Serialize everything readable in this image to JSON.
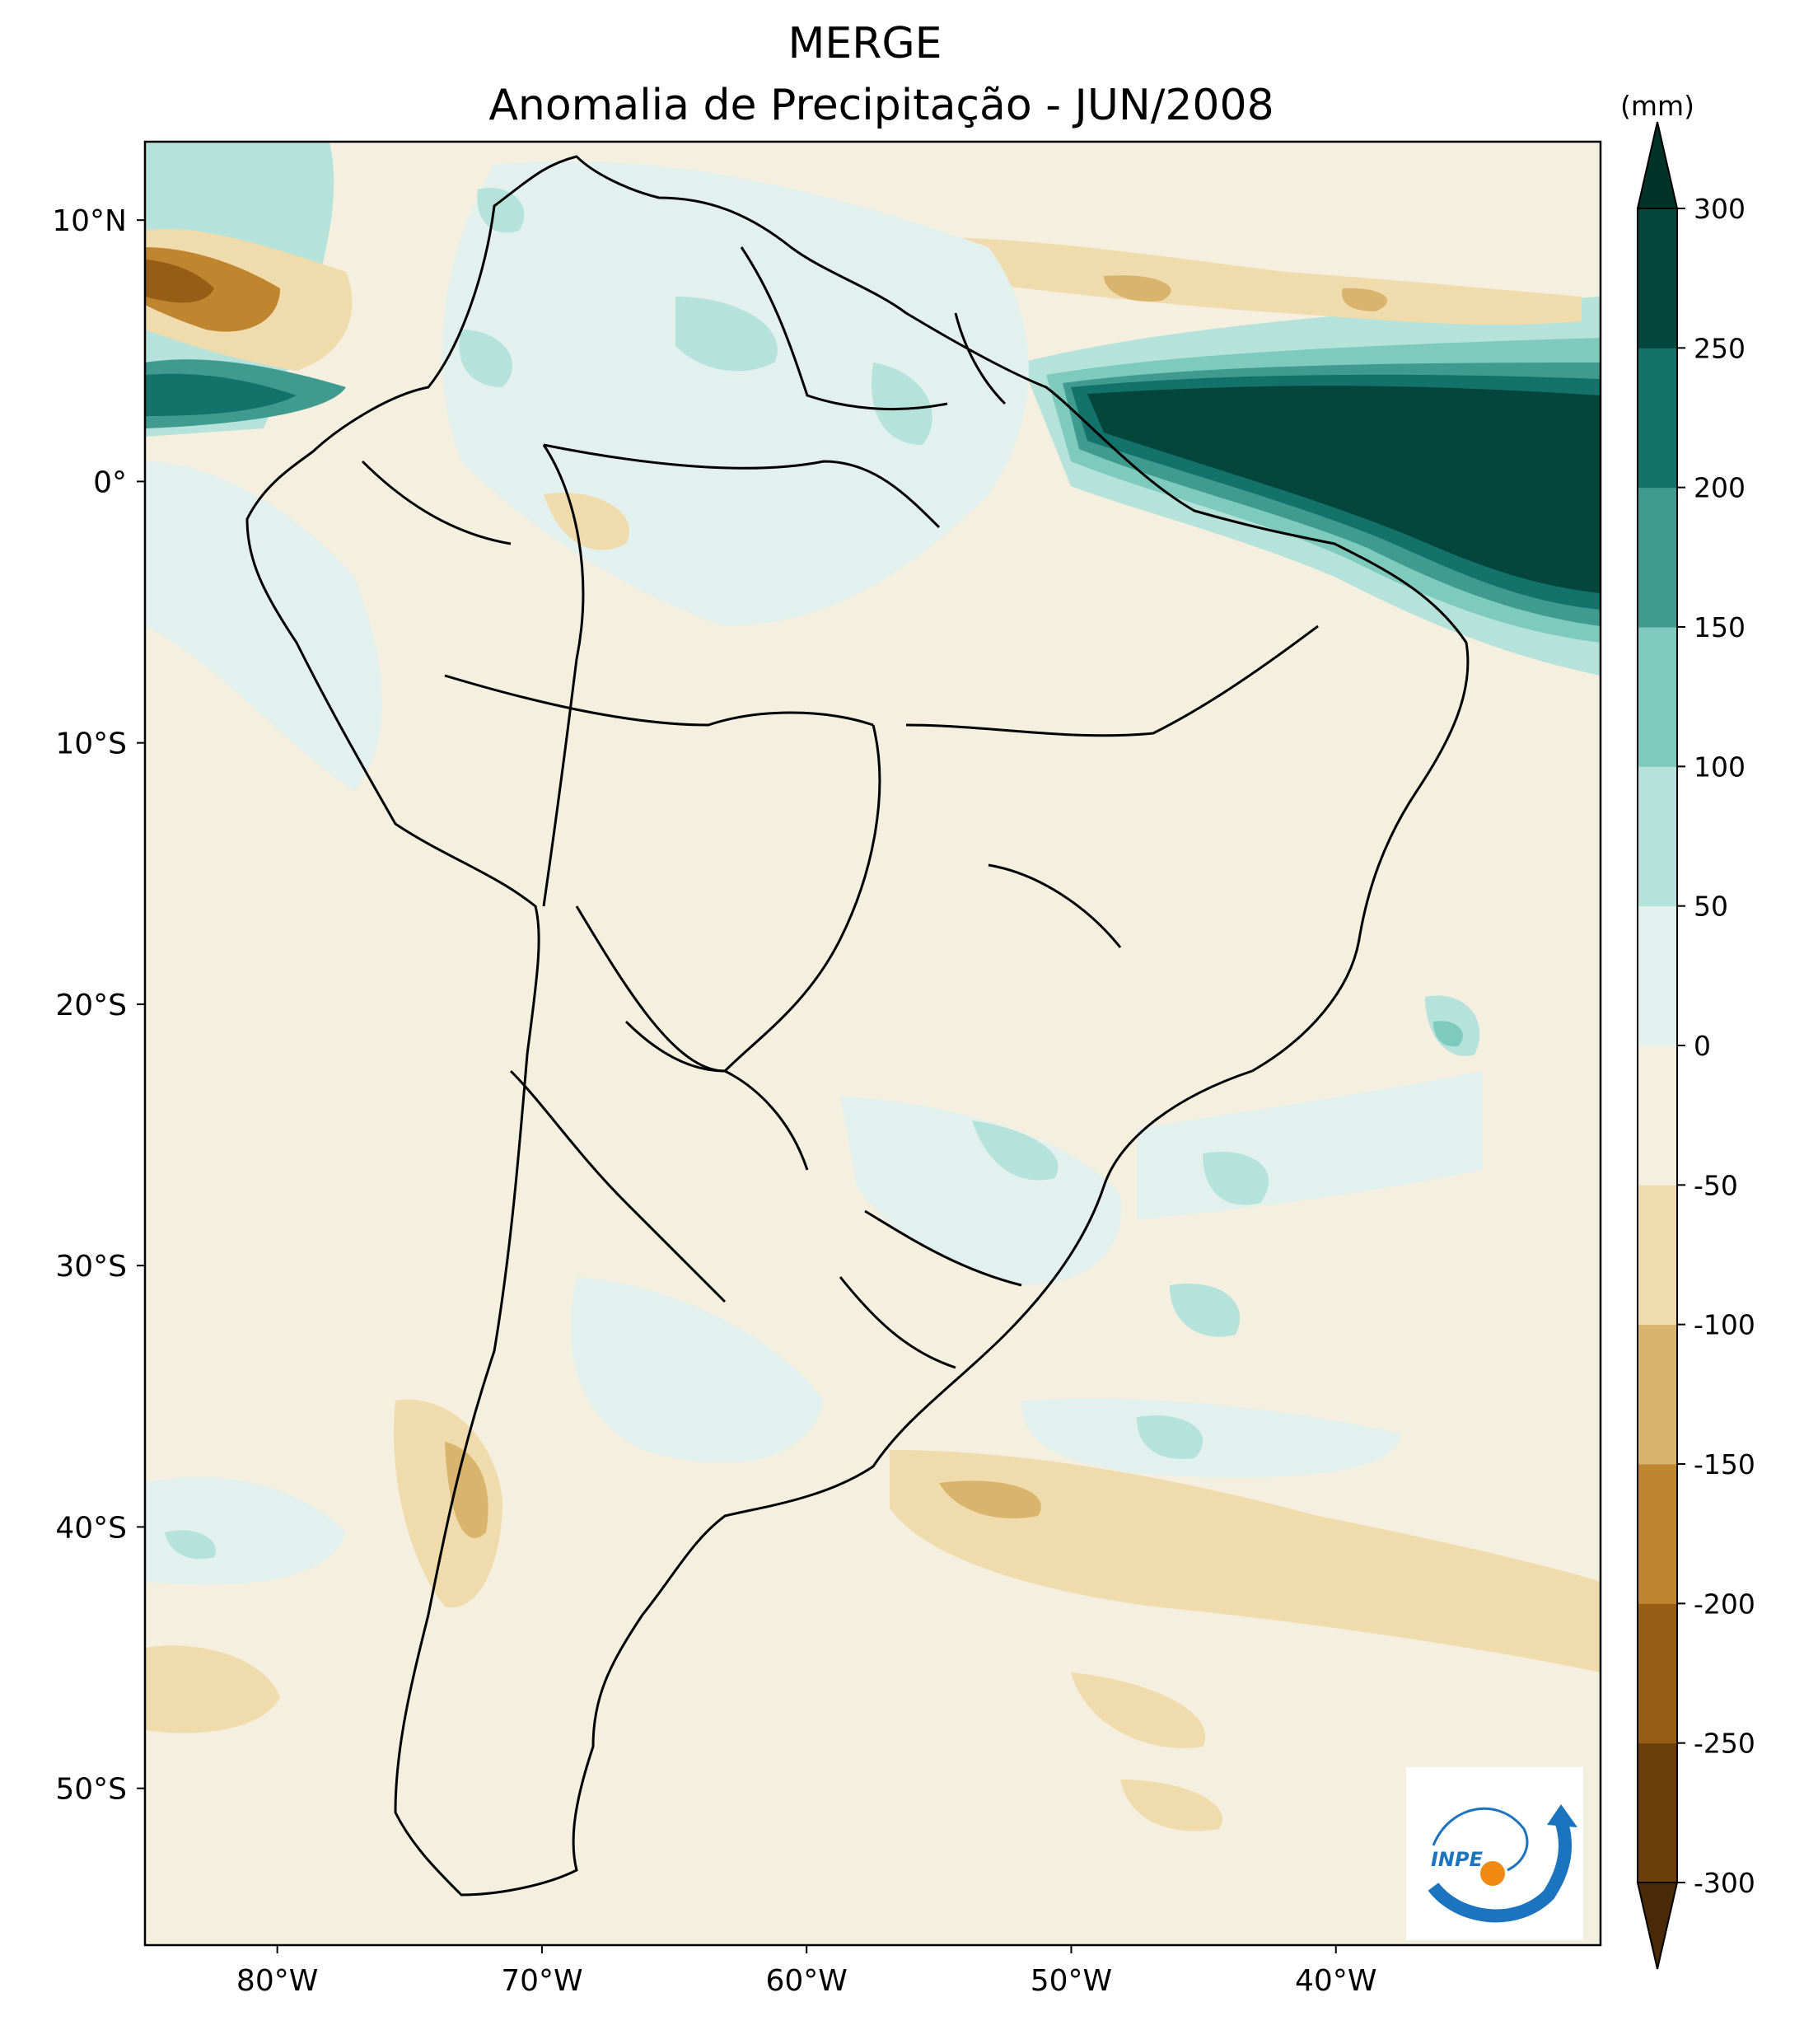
{
  "header": {
    "title": "MERGE",
    "subtitle": "Anomalia de Precipitação - JUN/2008"
  },
  "map": {
    "lon_range": [
      -85,
      -30
    ],
    "lat_range": [
      -56,
      13
    ],
    "lat_ticks": [
      {
        "value": 10,
        "label": "10°N"
      },
      {
        "value": 0,
        "label": "0°"
      },
      {
        "value": -10,
        "label": "10°S"
      },
      {
        "value": -20,
        "label": "20°S"
      },
      {
        "value": -30,
        "label": "30°S"
      },
      {
        "value": -40,
        "label": "40°S"
      },
      {
        "value": -50,
        "label": "50°S"
      }
    ],
    "lon_ticks": [
      {
        "value": -80,
        "label": "80°W"
      },
      {
        "value": -70,
        "label": "70°W"
      },
      {
        "value": -60,
        "label": "60°W"
      },
      {
        "value": -50,
        "label": "50°W"
      },
      {
        "value": -40,
        "label": "40°W"
      }
    ],
    "colors": {
      "background": "#f5efe0",
      "coast": "#000000"
    }
  },
  "colorbar": {
    "unit": "(mm)",
    "levels": [
      -300,
      -250,
      -200,
      -150,
      -100,
      -50,
      0,
      50,
      100,
      150,
      200,
      250,
      300
    ],
    "labels": [
      "-300",
      "-250",
      "-200",
      "-150",
      "-100",
      "-50",
      "0",
      "50",
      "100",
      "150",
      "200",
      "250",
      "300"
    ],
    "colors": [
      "#6b3e0c",
      "#965d17",
      "#bf852f",
      "#d9b46c",
      "#efdbab",
      "#f5efe0",
      "#e2f1ee",
      "#b5e2da",
      "#7ecbbd",
      "#3f9b8f",
      "#137269",
      "#04463c"
    ],
    "extend_colors": {
      "min": "#4a2a06",
      "max": "#013228"
    }
  },
  "logo": {
    "text": "INPE",
    "color_blue": "#1b74bd",
    "color_orange": "#f08a12"
  }
}
